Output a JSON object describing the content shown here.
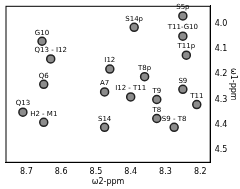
{
  "chart_data": {
    "type": "scatter",
    "x_label": "ω2-ppm",
    "y_label": "ω1-ppm",
    "xlim": [
      8.76,
      8.17
    ],
    "ylim": [
      3.93,
      4.55
    ],
    "xticks": [
      8.7,
      8.6,
      8.5,
      8.4,
      8.3,
      8.2
    ],
    "yticks": [
      {
        "value": 4,
        "label": "4.0"
      },
      4.1,
      4.2,
      4.3,
      4.4,
      4.5
    ],
    "grid": false,
    "color": "#8c8c8c",
    "marker": "circle",
    "peaks": [
      {
        "label": "G10",
        "x": 8.655,
        "y": 4.07
      },
      {
        "label": "Q13 - I12",
        "x": 8.63,
        "y": 4.14
      },
      {
        "label": "S14p",
        "x": 8.39,
        "y": 4.015
      },
      {
        "label": "S5p",
        "x": 8.25,
        "y": 3.97
      },
      {
        "label": "T11-G10",
        "x": 8.25,
        "y": 4.05
      },
      {
        "label": "T11p",
        "x": 8.24,
        "y": 4.125
      },
      {
        "label": "I12",
        "x": 8.46,
        "y": 4.18
      },
      {
        "label": "T8p",
        "x": 8.36,
        "y": 4.21
      },
      {
        "label": "Q6",
        "x": 8.65,
        "y": 4.24
      },
      {
        "label": "A7",
        "x": 8.475,
        "y": 4.27
      },
      {
        "label": "I12 - T11",
        "x": 8.4,
        "y": 4.29
      },
      {
        "label": "T9",
        "x": 8.325,
        "y": 4.3
      },
      {
        "label": "S9",
        "x": 8.25,
        "y": 4.26
      },
      {
        "label": "T11",
        "x": 8.21,
        "y": 4.32
      },
      {
        "label": "Q13",
        "x": 8.71,
        "y": 4.35
      },
      {
        "label": "H2 - M1",
        "x": 8.65,
        "y": 4.39
      },
      {
        "label": "S14",
        "x": 8.475,
        "y": 4.41
      },
      {
        "label": "T8",
        "x": 8.325,
        "y": 4.375
      },
      {
        "label": "S9 - T8",
        "x": 8.275,
        "y": 4.41
      }
    ]
  }
}
